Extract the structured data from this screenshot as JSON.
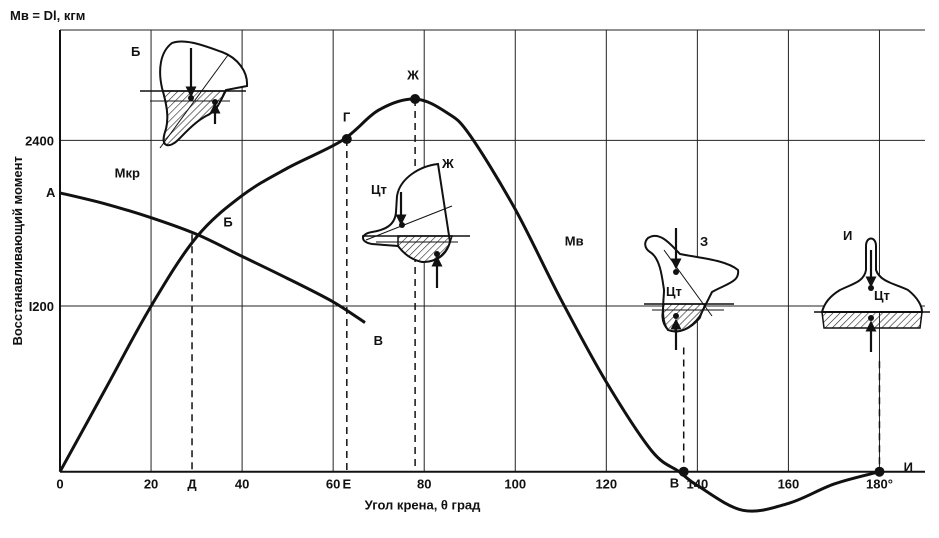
{
  "chart_data": {
    "type": "line",
    "title": "",
    "y_title": "Mв = Dl, кгм",
    "ylabel": "Восстанавливающий момент",
    "xlabel": "Угол крена, θ град",
    "xlim": [
      0,
      190
    ],
    "ylim": [
      -350,
      3200
    ],
    "x_ticks": [
      {
        "value": 0,
        "label": "0"
      },
      {
        "value": 20,
        "label": "20"
      },
      {
        "value": 40,
        "label": "40"
      },
      {
        "value": 60,
        "label": "60"
      },
      {
        "value": 80,
        "label": "80"
      },
      {
        "value": 100,
        "label": "100"
      },
      {
        "value": 120,
        "label": "120"
      },
      {
        "value": 140,
        "label": "140"
      },
      {
        "value": 160,
        "label": "160"
      },
      {
        "value": 180,
        "label": "180°"
      }
    ],
    "y_ticks": [
      {
        "value": 1200,
        "label": "I200"
      },
      {
        "value": 2400,
        "label": "2400"
      }
    ],
    "x_grid": [
      20,
      40,
      60,
      80,
      100,
      120,
      140,
      160,
      180
    ],
    "y_grid": [
      1200,
      2400
    ],
    "series": [
      {
        "name": "Mв",
        "label": "Mв",
        "color": "#111111",
        "x": [
          0,
          10,
          20,
          30,
          40,
          50,
          62,
          70,
          78,
          85,
          90,
          100,
          110,
          120,
          130,
          136,
          140,
          150,
          160,
          170,
          180
        ],
        "y": [
          0,
          600,
          1200,
          1700,
          2000,
          2200,
          2400,
          2620,
          2700,
          2600,
          2440,
          1900,
          1250,
          650,
          150,
          0,
          -100,
          -280,
          -230,
          -90,
          0
        ]
      },
      {
        "name": "Mкр",
        "label": "Mкр",
        "color": "#111111",
        "x": [
          0,
          10,
          20,
          30,
          40,
          50,
          60,
          67
        ],
        "y": [
          2020,
          1940,
          1840,
          1720,
          1560,
          1400,
          1230,
          1080
        ]
      }
    ],
    "points": [
      {
        "label": "А",
        "x": 0,
        "y": 2020
      },
      {
        "label": "Б",
        "x": 35,
        "y": 1720
      },
      {
        "label": "В",
        "x": 68,
        "y": 1020
      },
      {
        "label": "Г",
        "x": 63,
        "y": 2450
      },
      {
        "label": "Ж",
        "x": 78,
        "y": 2740
      },
      {
        "label": "Mв",
        "x": 110,
        "y": 1640
      },
      {
        "label": "В",
        "x": 137,
        "y": 0
      },
      {
        "label": "И",
        "x": 184,
        "y": 0
      }
    ],
    "vertical_refs": [
      {
        "label": "Д",
        "x": 29,
        "y": 1720
      },
      {
        "label": "Е",
        "x": 63,
        "y": 2410
      },
      {
        "label": "Ж",
        "x": 78,
        "y": 2700
      }
    ],
    "markers": [
      {
        "x": 63,
        "y": 2410
      },
      {
        "x": 78,
        "y": 2700
      },
      {
        "x": 137,
        "y": 0
      },
      {
        "x": 180,
        "y": 0
      }
    ],
    "insets": [
      {
        "id": "inset-b",
        "label": "Б",
        "ct_label": ""
      },
      {
        "id": "inset-zh",
        "label": "Ж",
        "ct_label": "Цт"
      },
      {
        "id": "inset-z",
        "label": "З",
        "ct_label": "Цт"
      },
      {
        "id": "inset-i",
        "label": "И",
        "ct_label": "Цт"
      }
    ],
    "grid": true
  }
}
